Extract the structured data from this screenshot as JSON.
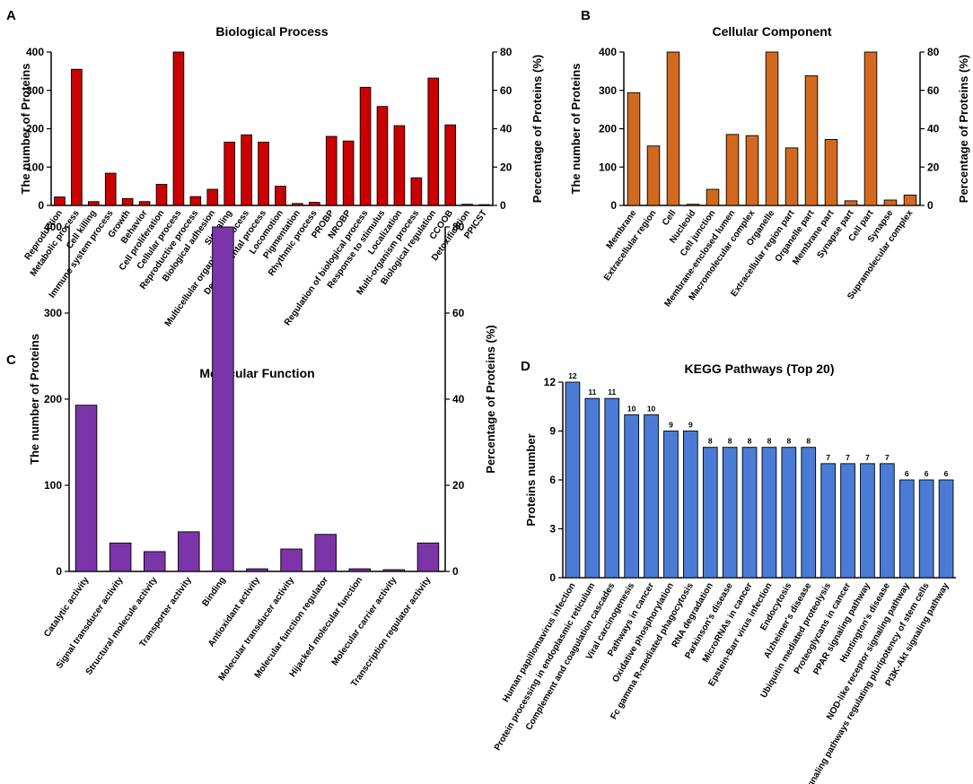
{
  "chart_data": [
    {
      "id": "A",
      "panel_letter": "A",
      "type": "bar",
      "title": "Biological Process",
      "ylabel": "The number of Proteins",
      "y2label": "Percentage of Proteins (%)",
      "ylim": [
        0,
        400
      ],
      "y2lim": [
        0,
        80
      ],
      "yticks": [
        0,
        100,
        200,
        300,
        400
      ],
      "y2ticks": [
        0,
        20,
        40,
        60,
        80
      ],
      "bar_color": "#cc0000",
      "categories": [
        "Reproduction",
        "Metabolic process",
        "Cell killing",
        "Immune system process",
        "Growth",
        "Behavior",
        "Cell proliferation",
        "Cellular process",
        "Reproductive process",
        "Biological adhesion",
        "Signaling",
        "Multicellular organismal process",
        "Developmental process",
        "Locomotion",
        "Pigmentation",
        "Rhythmic process",
        "PROBP",
        "NROBP",
        "Regulation of biological process",
        "Response to stimulus",
        "Localization",
        "Multi-organism process",
        "Biological regulation",
        "CCOOB",
        "Detoxification",
        "PPICST"
      ],
      "values": [
        22,
        355,
        10,
        84,
        18,
        10,
        55,
        400,
        23,
        42,
        165,
        184,
        165,
        50,
        5,
        8,
        180,
        168,
        308,
        258,
        208,
        72,
        332,
        210,
        3,
        2
      ]
    },
    {
      "id": "B",
      "panel_letter": "B",
      "type": "bar",
      "title": "Cellular Component",
      "ylabel": "The number of Proteins",
      "y2label": "Percentage of Proteins (%)",
      "ylim": [
        0,
        400
      ],
      "y2lim": [
        0,
        80
      ],
      "yticks": [
        0,
        100,
        200,
        300,
        400
      ],
      "y2ticks": [
        0,
        20,
        40,
        60,
        80
      ],
      "bar_color": "#d2691e",
      "categories": [
        "Membrane",
        "Extracellular region",
        "Cell",
        "Nucleoid",
        "Cell junction",
        "Membrane-enclosed lumen",
        "Macromolecular complex",
        "Organelle",
        "Extracellular region part",
        "Organelle part",
        "Membrane part",
        "Synapse part",
        "Cell part",
        "Synapse",
        "Supramolecular complex"
      ],
      "values": [
        294,
        155,
        400,
        3,
        42,
        185,
        182,
        400,
        150,
        338,
        172,
        12,
        400,
        14,
        27
      ]
    },
    {
      "id": "C",
      "panel_letter": "C",
      "type": "bar",
      "title": "Molecular Function",
      "ylabel": "The number of Proteins",
      "y2label": "Percentage of Proteins (%)",
      "ylim": [
        0,
        400
      ],
      "y2lim": [
        0,
        80
      ],
      "yticks": [
        0,
        100,
        200,
        300,
        400
      ],
      "y2ticks": [
        0,
        20,
        40,
        60,
        80
      ],
      "bar_color": "#7b35a8",
      "categories": [
        "Catalytic activity",
        "Signal transducer activity",
        "Structural molecule activity",
        "Transporter activity",
        "Binding",
        "Antioxidant activity",
        "Molecular transducer activity",
        "Molecular function regulator",
        "Hijacked molecular function",
        "Molecular carrier activity",
        "Transcription regulator activity"
      ],
      "values": [
        193,
        33,
        23,
        46,
        400,
        3,
        26,
        43,
        3,
        2,
        33
      ]
    },
    {
      "id": "D",
      "panel_letter": "D",
      "type": "bar",
      "title": "KEGG Pathways (Top 20)",
      "ylabel": "Proteins number",
      "ylim": [
        0,
        12
      ],
      "yticks": [
        0,
        3,
        6,
        9,
        12
      ],
      "bar_color": "#4a7bd6",
      "show_data_labels": true,
      "categories": [
        "Human papillomavirus infection",
        "Protein processing in endoplasmic reticulum",
        "Complement and coagulation cascades",
        "Viral carcinogenesis",
        "Pathways in cancer",
        "Oxidative phosphorylation",
        "Fc gamma R-mediated phagocytosis",
        "RNA degradation",
        "Parkinson's disease",
        "MicroRNAs in cancer",
        "Epstein-Barr virus infection",
        "Endocytosis",
        "Alzheimer's disease",
        "Ubiquitin mediated proteolysis",
        "Proteoglycans in cancer",
        "PPAR signaling pathway",
        "Huntington's disease",
        "NOD-like receptor signaling pathway",
        "Signaling pathways regulating pluripotency of stem cells",
        "PI3K-Akt signaling pathway"
      ],
      "values": [
        12,
        11,
        11,
        10,
        10,
        9,
        9,
        8,
        8,
        8,
        8,
        8,
        8,
        7,
        7,
        7,
        7,
        6,
        6,
        6
      ]
    }
  ]
}
